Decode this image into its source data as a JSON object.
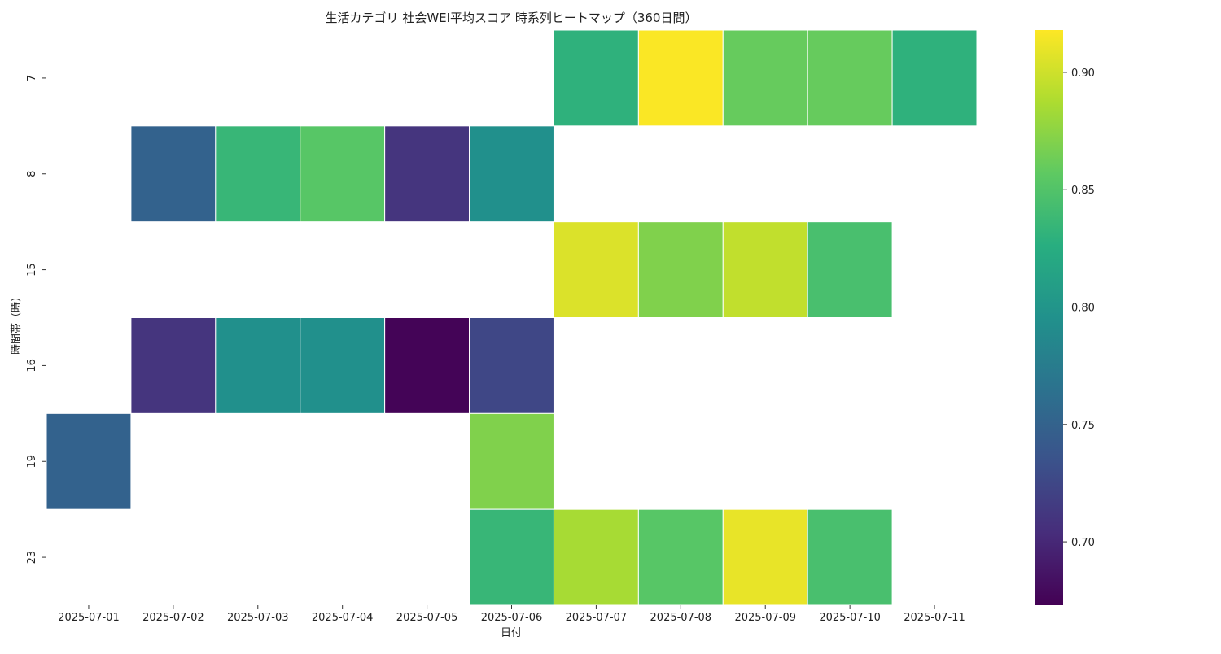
{
  "chart_data": {
    "type": "heatmap",
    "title": "生活カテゴリ 社会WEI平均スコア 時系列ヒートマップ（360日間）",
    "xlabel": "日付",
    "ylabel": "時間帯（時）",
    "x_categories": [
      "2025-07-01",
      "2025-07-02",
      "2025-07-03",
      "2025-07-04",
      "2025-07-05",
      "2025-07-06",
      "2025-07-07",
      "2025-07-08",
      "2025-07-09",
      "2025-07-10",
      "2025-07-11"
    ],
    "y_categories": [
      "7",
      "8",
      "15",
      "16",
      "19",
      "23"
    ],
    "values": [
      [
        null,
        null,
        null,
        null,
        null,
        null,
        0.83,
        0.917,
        0.86,
        0.86,
        0.83
      ],
      [
        null,
        0.75,
        0.835,
        0.853,
        0.71,
        0.795,
        null,
        null,
        null,
        null,
        null
      ],
      [
        null,
        null,
        null,
        null,
        null,
        null,
        0.905,
        0.87,
        0.895,
        0.845,
        null
      ],
      [
        null,
        0.71,
        0.795,
        0.795,
        0.675,
        0.725,
        null,
        null,
        null,
        null,
        null
      ],
      [
        0.75,
        null,
        null,
        null,
        null,
        0.87,
        null,
        null,
        null,
        null,
        null
      ],
      [
        null,
        null,
        null,
        null,
        null,
        0.835,
        0.885,
        0.853,
        0.91,
        0.845,
        null
      ]
    ],
    "colorbar": {
      "colormap": "viridis",
      "range": [
        0.673,
        0.918
      ],
      "ticks": [
        "0.70",
        "0.75",
        "0.80",
        "0.85",
        "0.90"
      ],
      "tick_values": [
        0.7,
        0.75,
        0.8,
        0.85,
        0.9
      ]
    },
    "grid": false,
    "legend": "colorbar-right"
  }
}
